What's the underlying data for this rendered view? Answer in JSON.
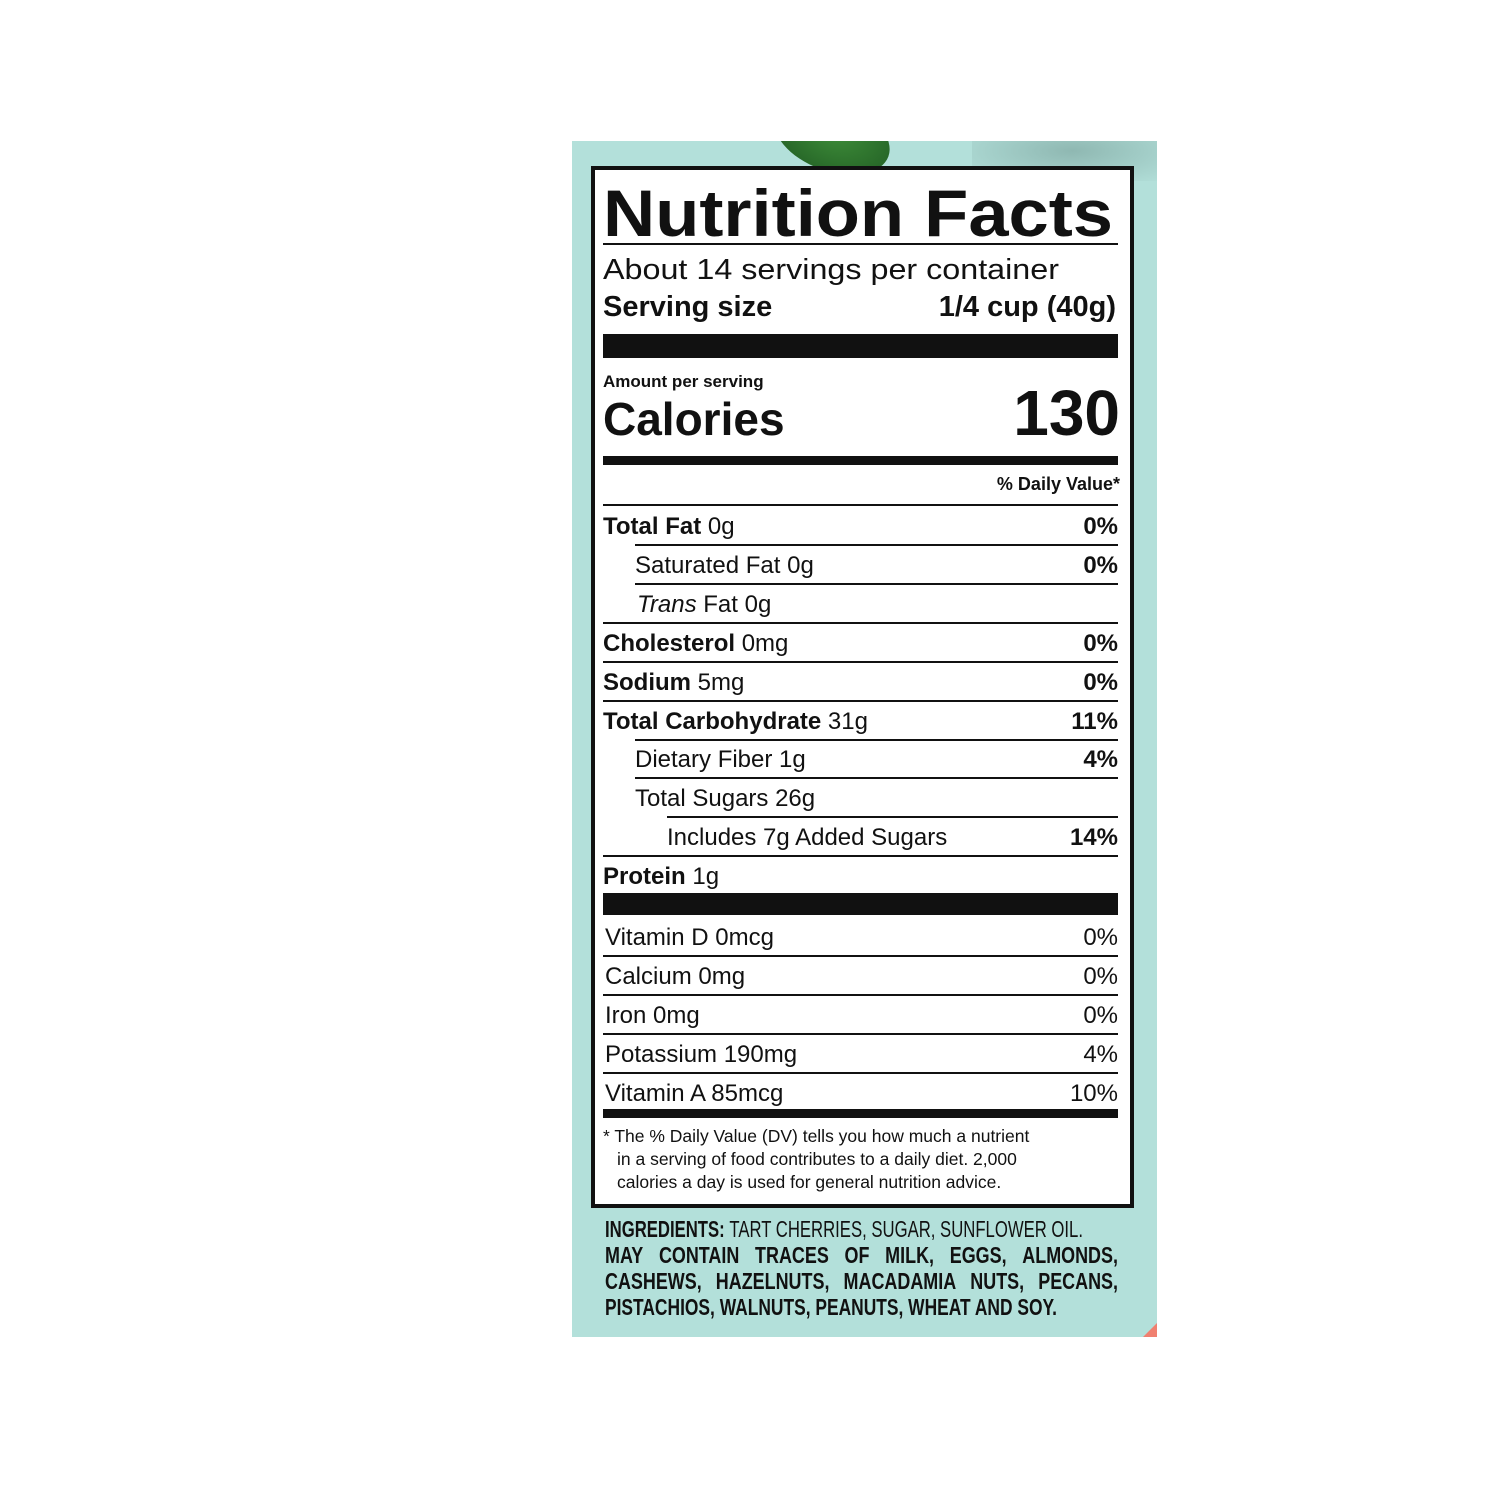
{
  "colors": {
    "panel_bg": "#b3e0da",
    "ink": "#111111"
  },
  "title": "Nutrition Facts",
  "servings": "About 14 servings per container",
  "serving_size_label": "Serving size",
  "serving_size_value": "1/4 cup (40g)",
  "amount_per_serving": "Amount per serving",
  "calories_label": "Calories",
  "calories_value": "130",
  "dv_header": "% Daily Value*",
  "nutrients": [
    {
      "name": "Total Fat",
      "amount": "0g",
      "dv": "0%"
    },
    {
      "name": "Saturated Fat",
      "amount": "0g",
      "dv": "0%"
    },
    {
      "name": "Trans",
      "suffix": "Fat",
      "amount": "0g",
      "dv": ""
    },
    {
      "name": "Cholesterol",
      "amount": "0mg",
      "dv": "0%"
    },
    {
      "name": "Sodium",
      "amount": "5mg",
      "dv": "0%"
    },
    {
      "name": "Total Carbohydrate",
      "amount": "31g",
      "dv": "11%"
    },
    {
      "name": "Dietary Fiber",
      "amount": "1g",
      "dv": "4%"
    },
    {
      "name": "Total Sugars",
      "amount": "26g",
      "dv": ""
    },
    {
      "name": "Includes 7g Added Sugars",
      "amount": "",
      "dv": "14%"
    },
    {
      "name": "Protein",
      "amount": "1g",
      "dv": ""
    }
  ],
  "vitamins": [
    {
      "label": "Vitamin D 0mcg",
      "dv": "0%"
    },
    {
      "label": "Calcium 0mg",
      "dv": "0%"
    },
    {
      "label": "Iron 0mg",
      "dv": "0%"
    },
    {
      "label": "Potassium 190mg",
      "dv": "4%"
    },
    {
      "label": "Vitamin A 85mcg",
      "dv": "10%"
    }
  ],
  "footnote": [
    "* The % Daily Value (DV) tells you how much a nutrient",
    "in a serving of food contributes to a daily diet. 2,000",
    "calories a day is used for general nutrition advice."
  ],
  "ingredients": {
    "label": "INGREDIENTS:",
    "text": "TART CHERRIES, SUGAR, SUNFLOWER OIL.",
    "allergens": [
      "MAY CONTAIN TRACES OF MILK, EGGS, ALMONDS,",
      "CASHEWS, HAZELNUTS, MACADAMIA NUTS, PECANS,",
      "PISTACHIOS, WALNUTS, PEANUTS, WHEAT AND SOY."
    ]
  }
}
